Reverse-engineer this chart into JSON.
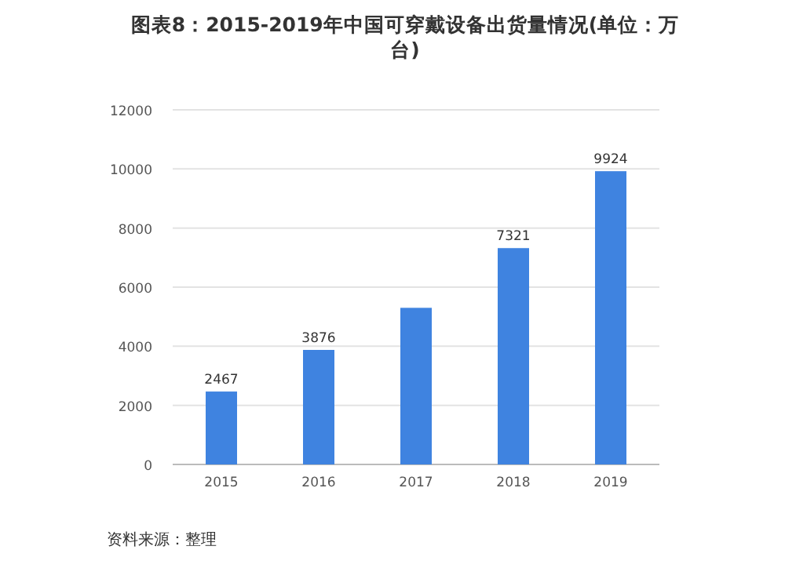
{
  "chart_data": {
    "type": "bar",
    "title": "图表8：2015-2019年中国可穿戴设备出货量情况(单位：万台)",
    "categories": [
      "2015",
      "2016",
      "2017",
      "2018",
      "2019"
    ],
    "values": [
      2467,
      3876,
      5300,
      7321,
      9924
    ],
    "value_labels": [
      "2467",
      "3876",
      null,
      "7321",
      "9924"
    ],
    "color": "#3f83e0",
    "ylim": [
      0,
      12000
    ],
    "yticks": [
      0,
      2000,
      4000,
      6000,
      8000,
      10000,
      12000
    ],
    "grid": "y",
    "annotations": [
      "资料来源：整理"
    ]
  }
}
